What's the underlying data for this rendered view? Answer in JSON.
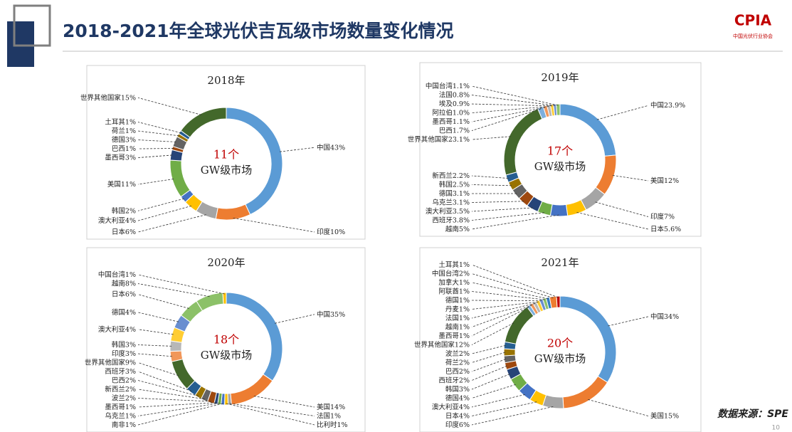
{
  "header": {
    "title": "2018-2021年全球光伏吉瓦级市场数量变化情况",
    "logo": "CPIA",
    "logo_sub": "中国光伏行业协会",
    "source": "数据来源：SPE",
    "page": "10"
  },
  "chart_data": [
    {
      "type": "donut",
      "title": "2018年",
      "center_count": "11个",
      "center_text": "GW级市场",
      "categories": [
        "中国",
        "印度",
        "日本",
        "澳大利亚",
        "韩国",
        "美国",
        "墨西哥",
        "巴西",
        "德国",
        "荷兰",
        "土耳其",
        "世界其他国家"
      ],
      "values": [
        43,
        10,
        6,
        4,
        2,
        11,
        3,
        1,
        3,
        1,
        1,
        15
      ],
      "value_labels": [
        "43%",
        "10%",
        "6%",
        "4%",
        "2%",
        "11%",
        "3%",
        "1%",
        "3%",
        "1%",
        "1%",
        "15%"
      ],
      "colors": [
        "#5b9bd5",
        "#ed7d31",
        "#a5a5a5",
        "#ffc000",
        "#4472c4",
        "#70ad47",
        "#264478",
        "#9e480e",
        "#636363",
        "#997300",
        "#255e91",
        "#43682b"
      ]
    },
    {
      "type": "donut",
      "title": "2019年",
      "center_count": "17个",
      "center_text": "GW级市场",
      "categories": [
        "中国",
        "美国",
        "印度",
        "日本",
        "越南",
        "西班牙",
        "澳大利亚",
        "乌克兰",
        "德国",
        "韩国",
        "新西兰",
        "世界其他国家",
        "巴西",
        "墨西哥",
        "阿拉伯",
        "埃及",
        "法国",
        "中国台湾"
      ],
      "values": [
        23.9,
        12,
        7,
        5.6,
        5,
        3.8,
        3.5,
        3.1,
        3.1,
        2.5,
        2.2,
        23.1,
        1.7,
        1.1,
        1.0,
        0.9,
        0.8,
        1.1
      ],
      "value_labels": [
        "23.9%",
        "12%",
        "7%",
        "5.6%",
        "5%",
        "3.8%",
        "3.5%",
        "3.1%",
        "3.1%",
        "2.5%",
        "2.2%",
        "23.1%",
        "1.7%",
        "1.1%",
        "1.0%",
        "0.9%",
        "0.8%",
        "1.1%"
      ],
      "colors": [
        "#5b9bd5",
        "#ed7d31",
        "#a5a5a5",
        "#ffc000",
        "#4472c4",
        "#70ad47",
        "#264478",
        "#9e480e",
        "#636363",
        "#997300",
        "#255e91",
        "#43682b",
        "#7cafdd",
        "#f1975a",
        "#b7b7b7",
        "#ffcd33",
        "#698ed0",
        "#8cc168"
      ]
    },
    {
      "type": "donut",
      "title": "2020年",
      "center_count": "18个",
      "center_text": "GW级市场",
      "categories": [
        "中国",
        "美国",
        "法国",
        "比利时",
        "南非",
        "乌克兰",
        "墨西哥",
        "波兰",
        "新西兰",
        "巴西",
        "西班牙",
        "世界其他国家",
        "印度",
        "韩国",
        "澳大利亚",
        "德国",
        "日本",
        "越南",
        "中国台湾"
      ],
      "values": [
        35,
        14,
        1,
        1,
        1,
        1,
        1,
        2,
        2,
        2,
        3,
        9,
        3,
        3,
        4,
        4,
        6,
        8,
        1
      ],
      "value_labels": [
        "35%",
        "14%",
        "1%",
        "1%",
        "1%",
        "1%",
        "1%",
        "2%",
        "2%",
        "2%",
        "3%",
        "9%",
        "3%",
        "3%",
        "4%",
        "4%",
        "6%",
        "8%",
        "1%"
      ],
      "colors": [
        "#5b9bd5",
        "#ed7d31",
        "#a5a5a5",
        "#ffc000",
        "#4472c4",
        "#70ad47",
        "#264478",
        "#9e480e",
        "#636363",
        "#997300",
        "#255e91",
        "#43682b",
        "#f1975a",
        "#b7b7b7",
        "#ffcd33",
        "#698ed0",
        "#8cc168",
        "#8cc168",
        "#ffc000"
      ]
    },
    {
      "type": "donut",
      "title": "2021年",
      "center_count": "20个",
      "center_text": "GW级市场",
      "categories": [
        "中国",
        "美国",
        "印度",
        "日本",
        "澳大利亚",
        "德国",
        "韩国",
        "西班牙",
        "巴西",
        "荷兰",
        "波兰",
        "世界其他国家",
        "墨西哥",
        "越南",
        "法国",
        "丹麦",
        "德国",
        "阿联酋",
        "加拿大",
        "中国台湾",
        "土耳其"
      ],
      "values": [
        34,
        15,
        6,
        4,
        4,
        4,
        3,
        2,
        2,
        2,
        2,
        12,
        1,
        1,
        1,
        1,
        1,
        1,
        1,
        2,
        1
      ],
      "value_labels": [
        "34%",
        "15%",
        "6%",
        "4%",
        "4%",
        "4%",
        "3%",
        "2%",
        "2%",
        "2%",
        "2%",
        "12%",
        "1%",
        "1%",
        "1%",
        "1%",
        "1%",
        "1%",
        "1%",
        "2%",
        "1%"
      ],
      "colors": [
        "#5b9bd5",
        "#ed7d31",
        "#a5a5a5",
        "#ffc000",
        "#4472c4",
        "#70ad47",
        "#264478",
        "#9e480e",
        "#636363",
        "#997300",
        "#255e91",
        "#43682b",
        "#7cafdd",
        "#f1975a",
        "#b7b7b7",
        "#ffcd33",
        "#698ed0",
        "#8cc168",
        "#327dc2",
        "#ed7d31",
        "#c00000"
      ]
    }
  ]
}
